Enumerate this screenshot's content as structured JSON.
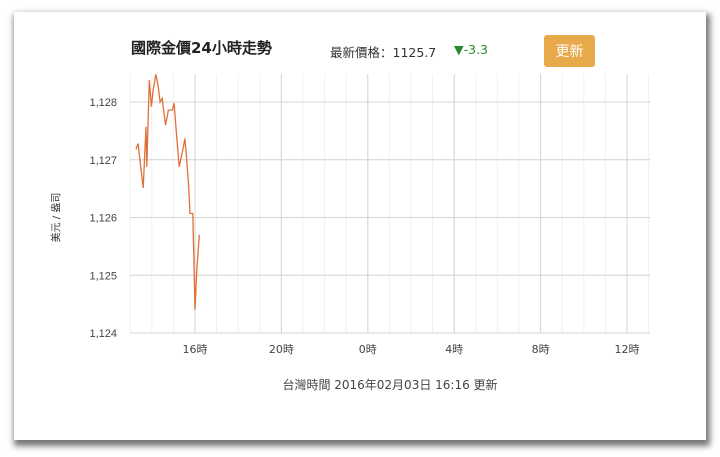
{
  "header": {
    "title": "國際金價24小時走勢",
    "latest_label": "最新價格：1125.7",
    "change": "▼-3.3",
    "refresh_button": "更新"
  },
  "footer": "台灣時間 2016年02月03日 16:16 更新",
  "chart_data": {
    "type": "line",
    "title": "國際金價24小時走勢",
    "ylabel": "美元 / 盎司",
    "xlabel": "",
    "ylim": [
      1124,
      1128.5
    ],
    "yticks": [
      1124,
      1125,
      1126,
      1127,
      1128
    ],
    "ytick_labels": [
      "1,124",
      "1,125",
      "1,126",
      "1,127",
      "1,128"
    ],
    "xticks": [
      16,
      20,
      0,
      4,
      8,
      12
    ],
    "xtick_labels": [
      "16時",
      "20時",
      "0時",
      "4時",
      "8時",
      "12時"
    ],
    "grid": true,
    "line_color": "#e0703a",
    "series": [
      {
        "x": [
          "13:16",
          "13:22",
          "13:27",
          "13:36",
          "13:44",
          "13:46",
          "13:53",
          "13:59",
          "14:04",
          "14:11",
          "14:18",
          "14:23",
          "14:29",
          "14:38",
          "14:46",
          "14:57",
          "15:02",
          "15:07",
          "15:16",
          "15:26",
          "15:32",
          "15:37",
          "15:42",
          "15:46",
          "15:54",
          "15:57",
          "16:00",
          "16:05",
          "16:12"
        ],
        "values": [
          1127.18,
          1127.28,
          1127.0,
          1126.51,
          1127.57,
          1126.88,
          1128.38,
          1127.92,
          1128.21,
          1128.48,
          1128.26,
          1128.0,
          1128.06,
          1127.6,
          1127.86,
          1127.86,
          1127.98,
          1127.57,
          1126.88,
          1127.17,
          1127.37,
          1127.0,
          1126.59,
          1126.07,
          1126.07,
          1125.26,
          1124.4,
          1125.09,
          1125.7
        ]
      }
    ]
  }
}
